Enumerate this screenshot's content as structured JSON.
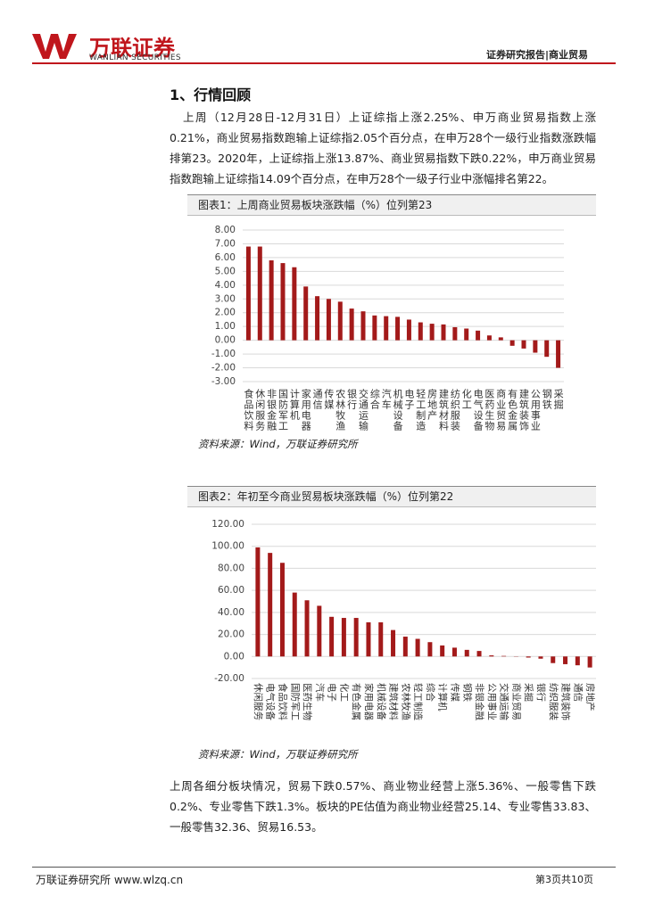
{
  "header": {
    "brand": "万联证券",
    "brand_en": "WANLIAN SECURITIES",
    "report": "证券研究报告|商业贸易"
  },
  "section_title": "1、行情回顾",
  "paragraphs": [
    "上周（12月28日-12月31日）上证综指上涨2.25%、申万商业贸易指数上涨0.21%，商业贸易指数跑输上证综指2.05个百分点，在申万28个一级行业指数涨跌幅排第23。2020年，上证综指上涨13.87%、商业贸易指数下跌0.22%，申万商业贸易指数跑输上证综指14.09个百分点，在申万28个一级子行业中涨幅排名第22。",
    "上周各细分板块情况，贸易下跌0.57%、商业物业经营上涨5.36%、一般零售下跌0.2%、专业零售下跌1.3%。板块的PE估值为商业物业经营25.14、专业零售33.83、一般零售32.36、贸易16.53。"
  ],
  "chart_data": [
    {
      "type": "bar",
      "title": "图表1：上周商业贸易板块涨跌幅（%）位列第23",
      "source": "资料来源：Wind，万联证券研究所",
      "categories": [
        "食品饮料",
        "休闲服务",
        "非银金融",
        "国防军工",
        "计算机",
        "家用电器",
        "通信",
        "传媒",
        "农林牧渔",
        "银行",
        "交通运输",
        "综合",
        "汽车",
        "机械设备",
        "电子",
        "轻工制造",
        "房地产",
        "建筑材料",
        "纺织服装",
        "化工",
        "电气设备",
        "医药生物",
        "商业贸易",
        "有色金属",
        "建筑装饰",
        "公用事业",
        "钢铁",
        "采掘"
      ],
      "values": [
        6.8,
        6.8,
        5.8,
        5.6,
        5.3,
        3.9,
        3.2,
        3.0,
        2.8,
        2.3,
        2.1,
        1.8,
        1.75,
        1.7,
        1.5,
        1.3,
        1.2,
        1.15,
        0.95,
        0.85,
        0.7,
        0.35,
        0.21,
        -0.4,
        -0.6,
        -0.9,
        -1.2,
        -2.0
      ],
      "color": "#a31a1a",
      "ylim": [
        -3,
        8
      ],
      "yticks": [
        {
          "value": 8,
          "label": "8.00"
        },
        {
          "value": 7,
          "label": "7.00"
        },
        {
          "value": 6,
          "label": "6.00"
        },
        {
          "value": 5,
          "label": "5.00"
        },
        {
          "value": 4,
          "label": "4.00"
        },
        {
          "value": 3,
          "label": "3.00"
        },
        {
          "value": 2,
          "label": "2.00"
        },
        {
          "value": 1,
          "label": "1.00"
        },
        {
          "value": 0,
          "label": "0.00"
        },
        {
          "value": -1,
          "label": "-1.00"
        },
        {
          "value": -2,
          "label": "-2.00"
        },
        {
          "value": -3,
          "label": "-3.00"
        }
      ],
      "grid": true
    },
    {
      "type": "bar",
      "title": "图表2：年初至今商业贸易板块涨跌幅（%）位列第22",
      "source": "资料来源：Wind，万联证券研究所",
      "categories": [
        "休闲服务",
        "电气设备",
        "食品饮料",
        "国防军工",
        "医药生物",
        "汽车",
        "电子",
        "化工",
        "有色金属",
        "家用电器",
        "机械设备",
        "建筑材料",
        "农林牧渔",
        "轻工制造",
        "综合",
        "计算机",
        "传媒",
        "钢铁",
        "非银金融",
        "公用事业",
        "交通运输",
        "商业贸易",
        "采掘",
        "银行",
        "纺织服装",
        "建筑装饰",
        "通信",
        "房地产"
      ],
      "values": [
        99,
        94,
        85,
        58,
        51,
        46,
        36,
        35,
        35,
        31,
        31,
        24,
        18,
        16,
        13,
        10,
        8,
        6,
        5,
        1,
        0.5,
        -0.22,
        -1,
        -2,
        -6,
        -7,
        -8,
        -10
      ],
      "color": "#a31a1a",
      "ylim": [
        -20,
        120
      ],
      "yticks": [
        {
          "value": 120,
          "label": "120.00"
        },
        {
          "value": 100,
          "label": "100.00"
        },
        {
          "value": 80,
          "label": "80.00"
        },
        {
          "value": 60,
          "label": "60.00"
        },
        {
          "value": 40,
          "label": "40.00"
        },
        {
          "value": 20,
          "label": "20.00"
        },
        {
          "value": 0,
          "label": "0.00"
        },
        {
          "value": -20,
          "label": "-20.00"
        }
      ],
      "grid": true
    }
  ],
  "footer": {
    "left": "万联证券研究所 www.wlzq.cn",
    "right": "第3页共10页"
  }
}
